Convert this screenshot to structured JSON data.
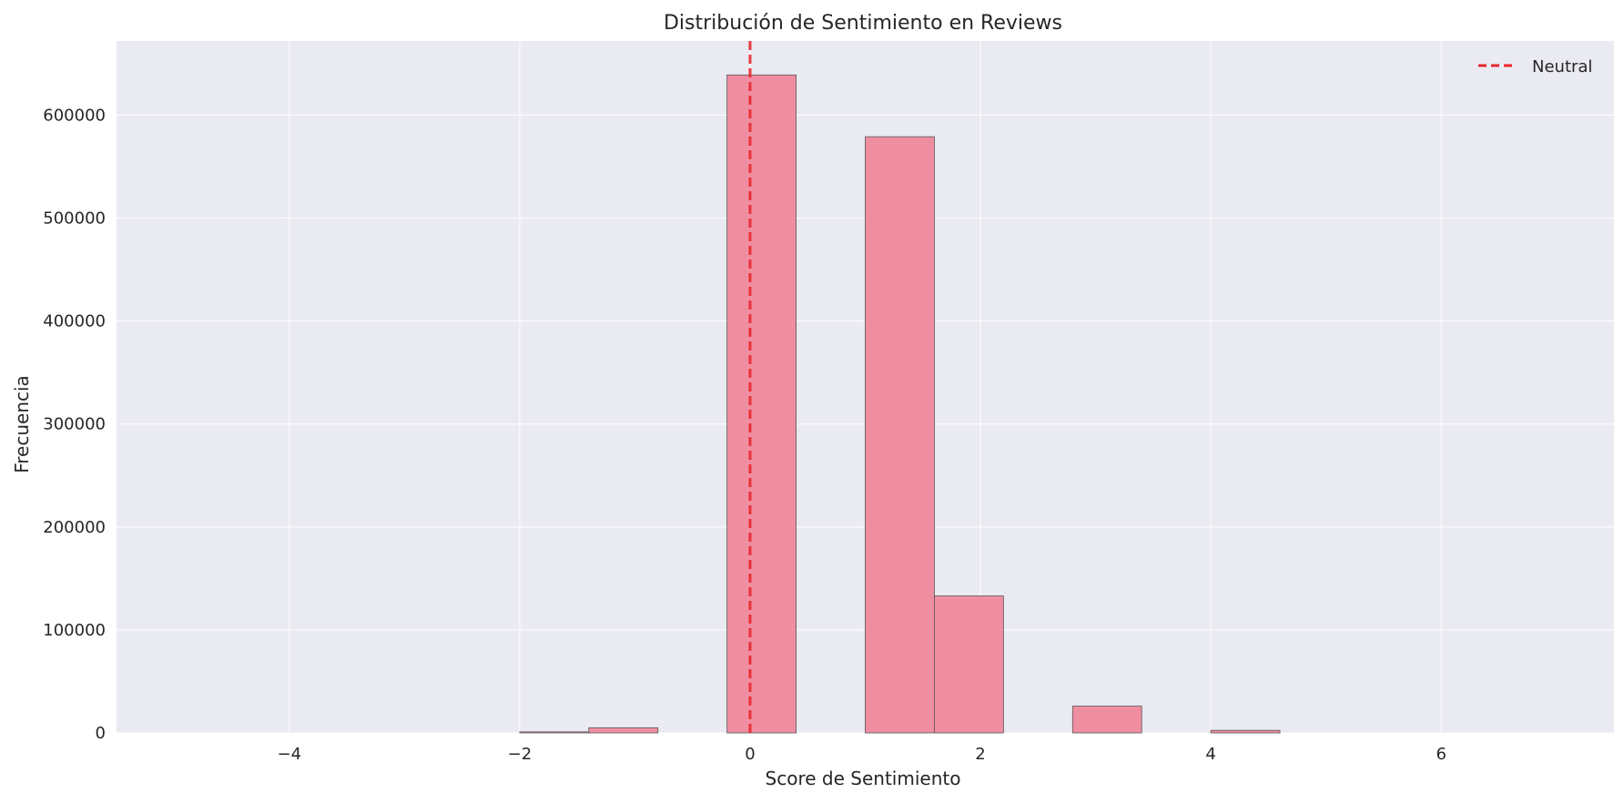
{
  "chart_data": {
    "type": "bar",
    "title": "Distribución de Sentimiento en Reviews",
    "xlabel": "Score de Sentimiento",
    "ylabel": "Frecuencia",
    "xlim": [
      -5.5,
      7.5
    ],
    "ylim": [
      0,
      672000
    ],
    "xticks": [
      -4,
      -2,
      0,
      2,
      4,
      6
    ],
    "xtick_labels": [
      "−4",
      "−2",
      "0",
      "2",
      "4",
      "6"
    ],
    "yticks": [
      0,
      100000,
      200000,
      300000,
      400000,
      500000,
      600000
    ],
    "ytick_labels": [
      "0",
      "100000",
      "200000",
      "300000",
      "400000",
      "500000",
      "600000"
    ],
    "grid": true,
    "bar_color": "#f08ea1",
    "edge_color": "#555555",
    "background_color": "#eaeaf2",
    "bins": [
      {
        "x0": -2.0,
        "x1": -1.4,
        "value": 1000
      },
      {
        "x0": -1.4,
        "x1": -0.8,
        "value": 5000
      },
      {
        "x0": -0.2,
        "x1": 0.4,
        "value": 639000
      },
      {
        "x0": 1.0,
        "x1": 1.6,
        "value": 579000
      },
      {
        "x0": 1.6,
        "x1": 2.2,
        "value": 133000
      },
      {
        "x0": 2.8,
        "x1": 3.4,
        "value": 26000
      },
      {
        "x0": 4.0,
        "x1": 4.6,
        "value": 2500
      }
    ],
    "reference_line": {
      "x": 0,
      "label": "Neutral",
      "color": "#e8262c",
      "style": "dashed"
    },
    "legend": {
      "position": "top-right",
      "entries": [
        "Neutral"
      ]
    }
  }
}
